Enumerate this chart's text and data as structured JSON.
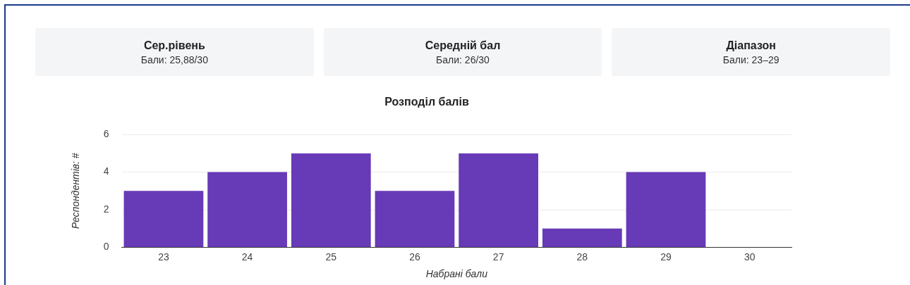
{
  "chart_data": {
    "type": "bar",
    "title": "Розподіл балів",
    "xlabel": "Набрані бали",
    "ylabel": "Респондентів: #",
    "annotations": [
      "Сер.рівень",
      "Бали: 25,88/30",
      "Середній бал",
      "Бали: 26/30",
      "Діапазон",
      "Бали: 23–29"
    ],
    "categories": [
      "23",
      "24",
      "25",
      "26",
      "27",
      "28",
      "29",
      "30"
    ],
    "values": [
      3,
      4,
      5,
      3,
      5,
      1,
      4,
      0
    ],
    "color": "#673ab7",
    "ylim": [
      0,
      6
    ],
    "yticks": [
      0,
      2,
      4,
      6
    ],
    "grid": "y",
    "legend": false
  }
}
